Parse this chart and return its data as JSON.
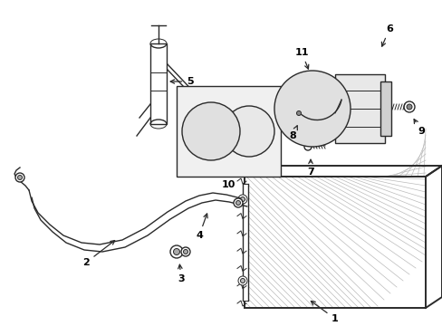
{
  "background_color": "#ffffff",
  "line_color": "#2a2a2a",
  "label_color": "#000000",
  "fig_width": 4.89,
  "fig_height": 3.6,
  "dpi": 100,
  "hatch_color": "#aaaaaa",
  "gray_fill": "#e8e8e8",
  "light_fill": "#f2f2f2"
}
